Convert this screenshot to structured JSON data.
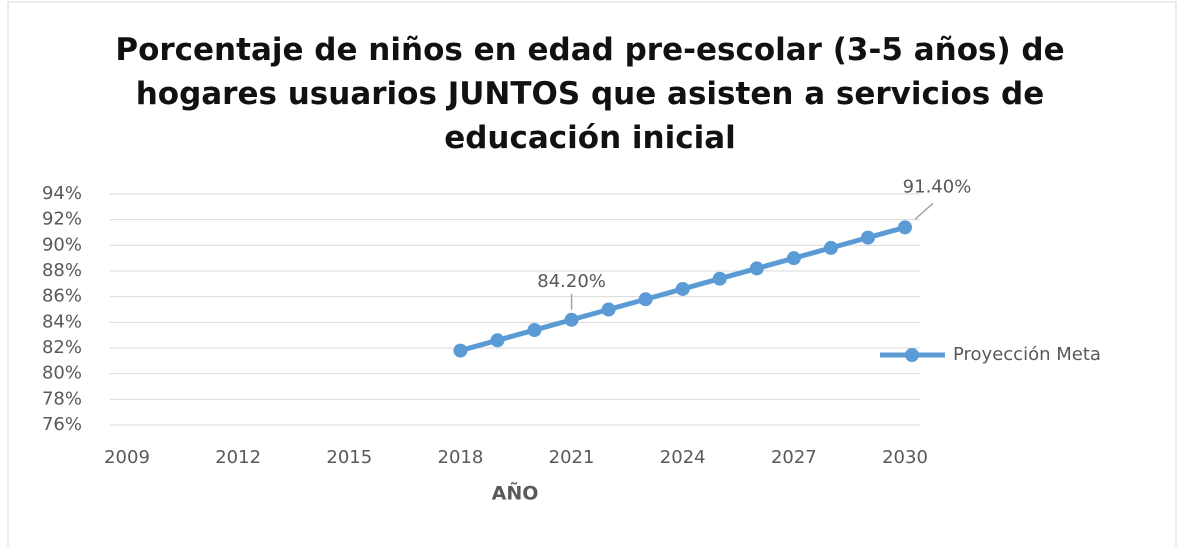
{
  "chart_data": {
    "type": "line",
    "title": "Porcentaje de niños en edad pre-escolar (3-5 años) de hogares usuarios JUNTOS que asisten a servicios de educación inicial",
    "x_label": "AÑO",
    "x": [
      2018,
      2019,
      2020,
      2021,
      2022,
      2023,
      2024,
      2025,
      2026,
      2027,
      2028,
      2029,
      2030
    ],
    "series": [
      {
        "name": "Proyección Meta",
        "color": "#5b9bd5",
        "values": [
          81.8,
          82.6,
          83.4,
          84.2,
          85.0,
          85.8,
          86.6,
          87.4,
          88.2,
          89.0,
          89.8,
          90.6,
          91.4
        ],
        "value_labels": [
          null,
          null,
          null,
          "84.20%",
          null,
          null,
          null,
          null,
          null,
          null,
          null,
          null,
          "91.40%"
        ]
      }
    ],
    "xlim": [
      2009,
      2030
    ],
    "xticks": [
      2009,
      2012,
      2015,
      2018,
      2021,
      2024,
      2027,
      2030
    ],
    "ylim": [
      76,
      94
    ],
    "yticks": [
      {
        "value": 76,
        "label": "76%"
      },
      {
        "value": 78,
        "label": "78%"
      },
      {
        "value": 80,
        "label": "80%"
      },
      {
        "value": 82,
        "label": "82%"
      },
      {
        "value": 84,
        "label": "84%"
      },
      {
        "value": 86,
        "label": "86%"
      },
      {
        "value": 88,
        "label": "88%"
      },
      {
        "value": 90,
        "label": "90%"
      },
      {
        "value": 92,
        "label": "92%"
      },
      {
        "value": 94,
        "label": "94%"
      }
    ],
    "grid": true,
    "legend": "right"
  }
}
